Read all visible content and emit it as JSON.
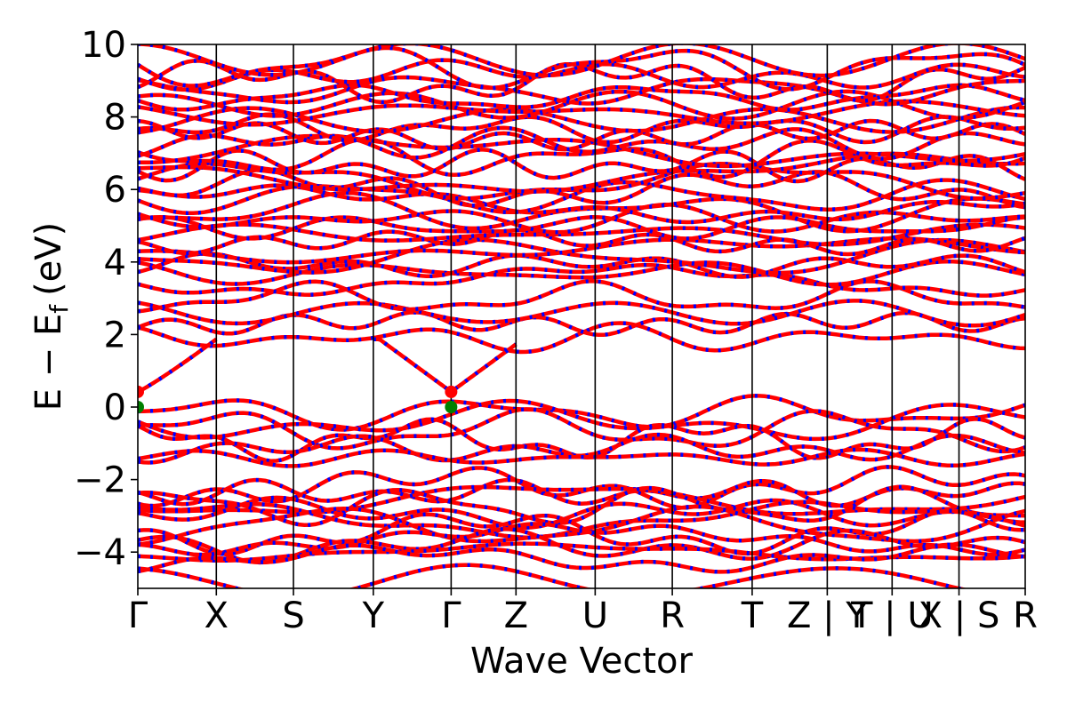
{
  "chart_data": {
    "type": "line",
    "title": "",
    "xlabel": "Wave Vector",
    "ylabel_main": "E − E",
    "ylabel_sub": "f",
    "ylabel_unit": "(eV)",
    "ylim": [
      -5,
      10
    ],
    "xlim": [
      0,
      13
    ],
    "yticks": [
      {
        "value": -4,
        "label": "−4"
      },
      {
        "value": -2,
        "label": "−2"
      },
      {
        "value": 0,
        "label": "0"
      },
      {
        "value": 2,
        "label": "2"
      },
      {
        "value": 4,
        "label": "4"
      },
      {
        "value": 6,
        "label": "6"
      },
      {
        "value": 8,
        "label": "8"
      },
      {
        "value": 10,
        "label": "10"
      }
    ],
    "kpoints": [
      {
        "x": 0,
        "label": "Γ"
      },
      {
        "x": 1.15,
        "label": "X"
      },
      {
        "x": 2.28,
        "label": "S"
      },
      {
        "x": 3.45,
        "label": "Y"
      },
      {
        "x": 4.59,
        "label": "Γ"
      },
      {
        "x": 5.54,
        "label": "Z"
      },
      {
        "x": 6.7,
        "label": "U"
      },
      {
        "x": 7.83,
        "label": "R"
      },
      {
        "x": 9.0,
        "label": "T"
      },
      {
        "x": 10.1,
        "label": "Z | Y"
      },
      {
        "x": 11.05,
        "label": "T | U"
      },
      {
        "x": 12.03,
        "label": "X | S"
      },
      {
        "x": 13.0,
        "label": "R"
      }
    ],
    "series": [
      {
        "color": "#ff0000"
      },
      {
        "color": "#0000ff"
      }
    ],
    "markers": [
      {
        "x": 0,
        "y": 0.42,
        "color": "#ff0000"
      },
      {
        "x": 0,
        "y": 0.0,
        "color": "#008000"
      },
      {
        "x": 4.59,
        "y": 0.42,
        "color": "#ff0000"
      },
      {
        "x": 4.59,
        "y": 0.0,
        "color": "#008000"
      }
    ]
  }
}
